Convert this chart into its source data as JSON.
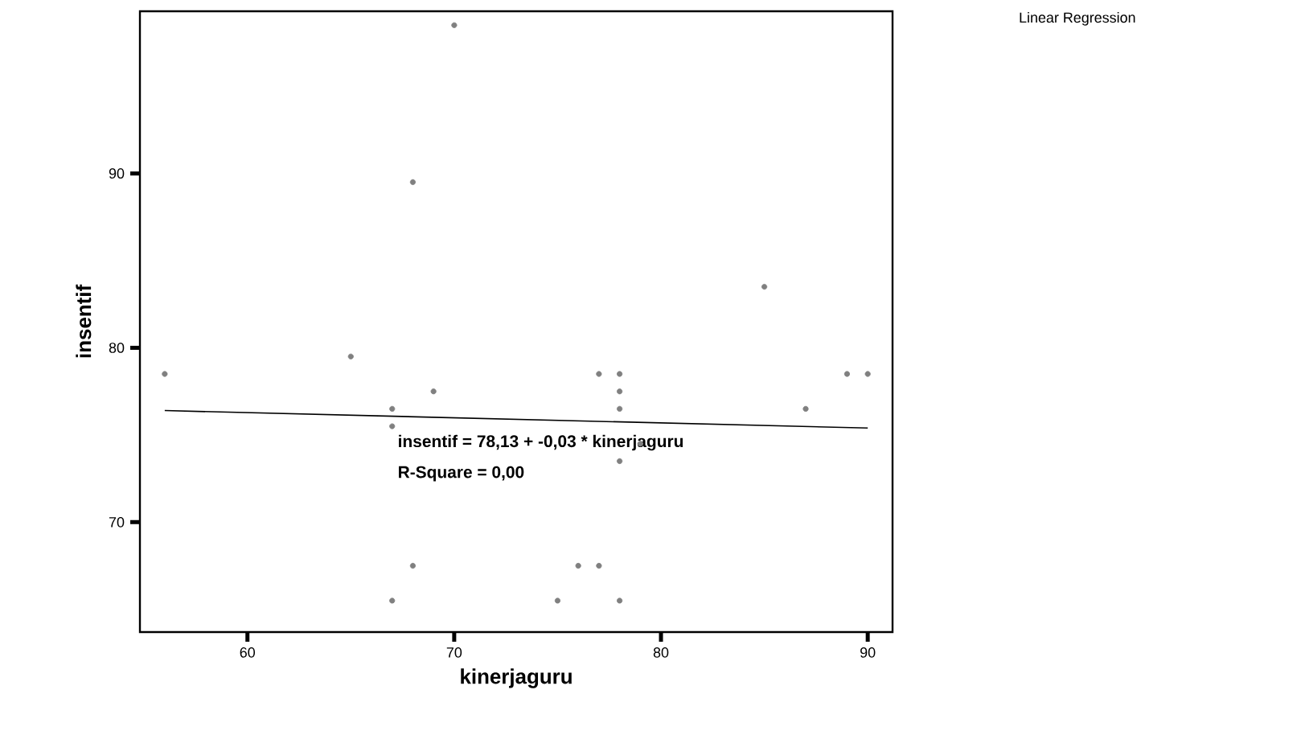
{
  "chart_data": {
    "type": "scatter",
    "xlabel": "kinerjaguru",
    "ylabel": "insentif",
    "xlim": [
      54.8,
      91.2
    ],
    "ylim": [
      63.7,
      99.3
    ],
    "xticks": [
      60,
      70,
      80,
      90
    ],
    "yticks": [
      70,
      80,
      90
    ],
    "grid": false,
    "marker": "circle",
    "annotations": [
      "insentif = 78,13 + -0,03 * kinerjaguru",
      "R-Square = 0,00",
      "Linear Regression"
    ],
    "series": [
      {
        "color": "#808080",
        "x": [
          56,
          65,
          67,
          67,
          67,
          68,
          68,
          69,
          70,
          75,
          76,
          77,
          77,
          78,
          78,
          78,
          78,
          78,
          79,
          85,
          87,
          89,
          90
        ],
        "values": [
          78.5,
          79.5,
          76.5,
          75.5,
          65.5,
          89.5,
          67.5,
          77.5,
          98.5,
          65.5,
          67.5,
          78.5,
          67.5,
          78.5,
          77.5,
          76.5,
          73.5,
          65.5,
          74.5,
          83.5,
          76.5,
          78.5,
          78.5
        ]
      },
      {
        "type": "line",
        "marker": "none",
        "color": "#000000",
        "x": [
          56,
          90
        ],
        "values": [
          76.4,
          75.4
        ]
      }
    ]
  }
}
